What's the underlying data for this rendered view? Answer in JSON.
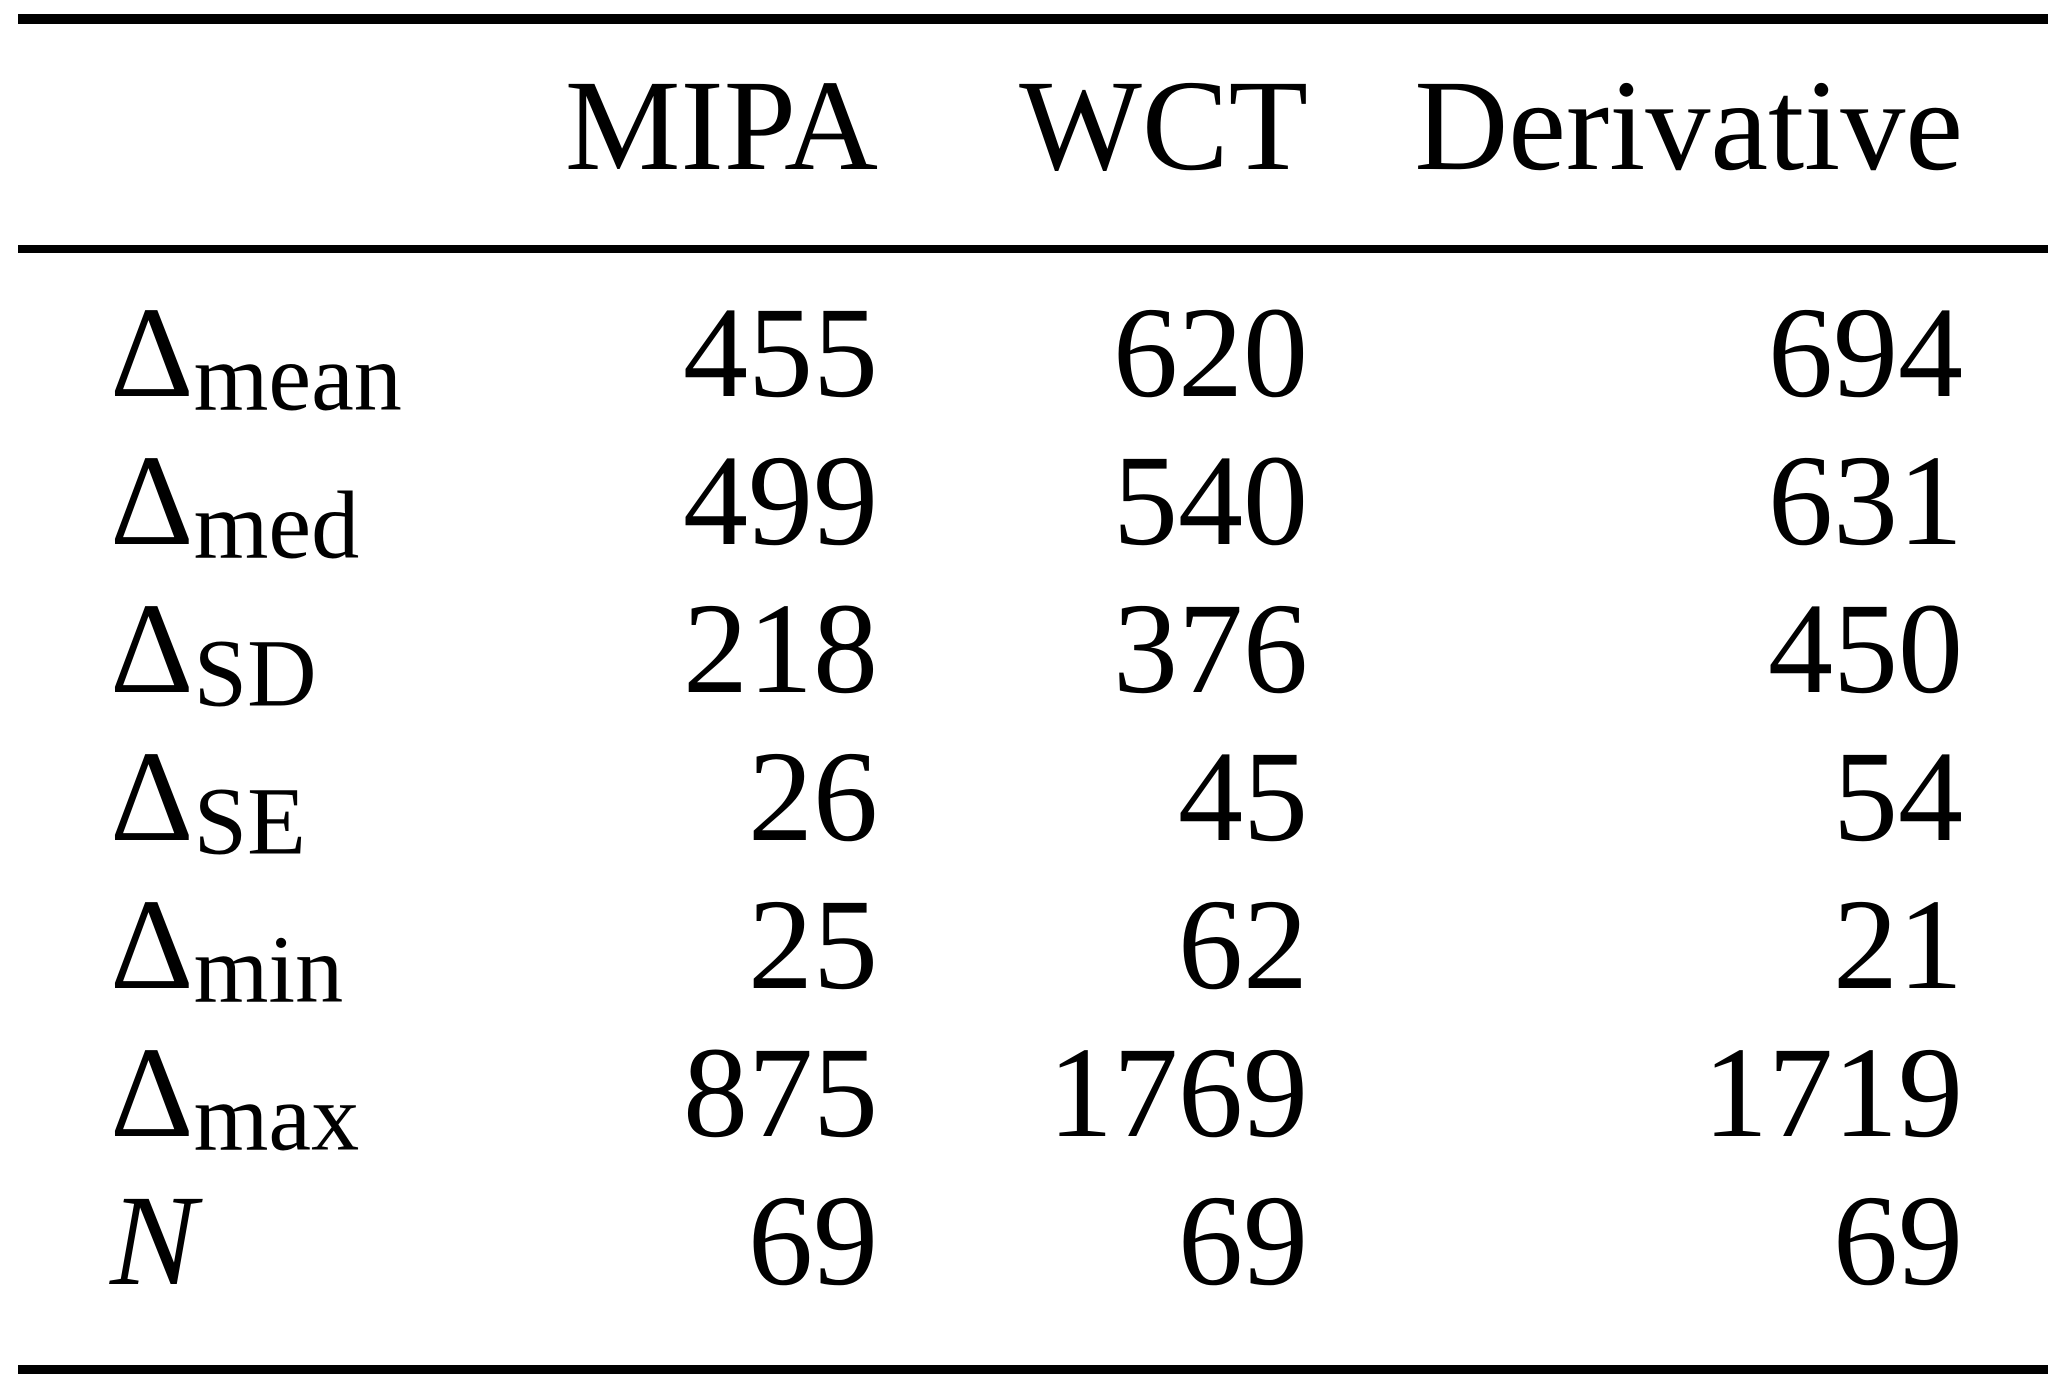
{
  "page": {
    "background": "#ffffff",
    "text_color": "#000000"
  },
  "table": {
    "columns": [
      "MIPA",
      "WCT",
      "Derivative"
    ],
    "rows": [
      {
        "base": "Δ",
        "sub": "mean",
        "italic": false,
        "values": [
          "455",
          "620",
          "694"
        ]
      },
      {
        "base": "Δ",
        "sub": "med",
        "italic": false,
        "values": [
          "499",
          "540",
          "631"
        ]
      },
      {
        "base": "Δ",
        "sub": "SD",
        "italic": false,
        "values": [
          "218",
          "376",
          "450"
        ]
      },
      {
        "base": "Δ",
        "sub": "SE",
        "italic": false,
        "values": [
          "26",
          "45",
          "54"
        ]
      },
      {
        "base": "Δ",
        "sub": "min",
        "italic": false,
        "values": [
          "25",
          "62",
          "21"
        ]
      },
      {
        "base": "Δ",
        "sub": "max",
        "italic": false,
        "values": [
          "875",
          "1769",
          "1719"
        ]
      },
      {
        "base": "N",
        "sub": "",
        "italic": true,
        "values": [
          "69",
          "69",
          "69"
        ]
      }
    ]
  }
}
